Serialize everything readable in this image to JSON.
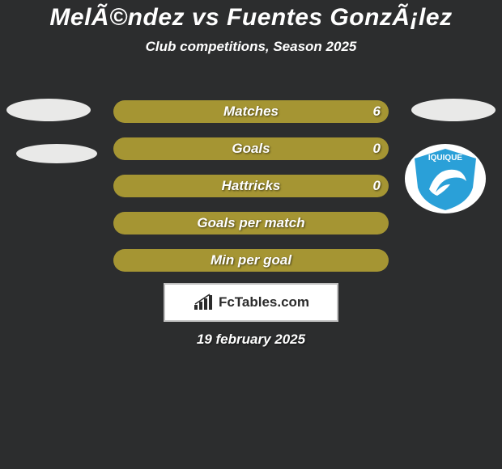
{
  "colors": {
    "background": "#2c2d2e",
    "text_light": "#ffffff",
    "text_shadow": "#000000",
    "bar_fill": "#a59533",
    "ellipse_fill": "#e9e9e8",
    "logo_bg": "#ffffff",
    "logo_blue": "#2aa0d8",
    "brand_box_bg": "#ffffff",
    "brand_box_border": "#bfbfbf",
    "brand_text": "#2b2b2b"
  },
  "title": {
    "text": "MelÃ©ndez vs Fuentes GonzÃ¡lez",
    "fontsize": 30
  },
  "subtitle": {
    "text": "Club competitions, Season 2025",
    "fontsize": 17
  },
  "labels_fontsize": 17,
  "values_fontsize": 17,
  "bar_full_width": 340,
  "rows": [
    {
      "label": "Matches",
      "left_value": "",
      "right_value": "6",
      "left_width": 340,
      "right_width": 340
    },
    {
      "label": "Goals",
      "left_value": "",
      "right_value": "0",
      "left_width": 340,
      "right_width": 340
    },
    {
      "label": "Hattricks",
      "left_value": "",
      "right_value": "0",
      "left_width": 340,
      "right_width": 340
    },
    {
      "label": "Goals per match",
      "left_value": "",
      "right_value": "",
      "left_width": 340,
      "right_width": 340
    },
    {
      "label": "Min per goal",
      "left_value": "",
      "right_value": "",
      "left_width": 340,
      "right_width": 340
    }
  ],
  "logo": {
    "text": "IQUIQUE",
    "text_color": "#ffffff",
    "text_fontsize": 10
  },
  "brand": {
    "text": "FcTables.com",
    "fontsize": 17
  },
  "footer_date": {
    "text": "19 february 2025",
    "fontsize": 17
  }
}
